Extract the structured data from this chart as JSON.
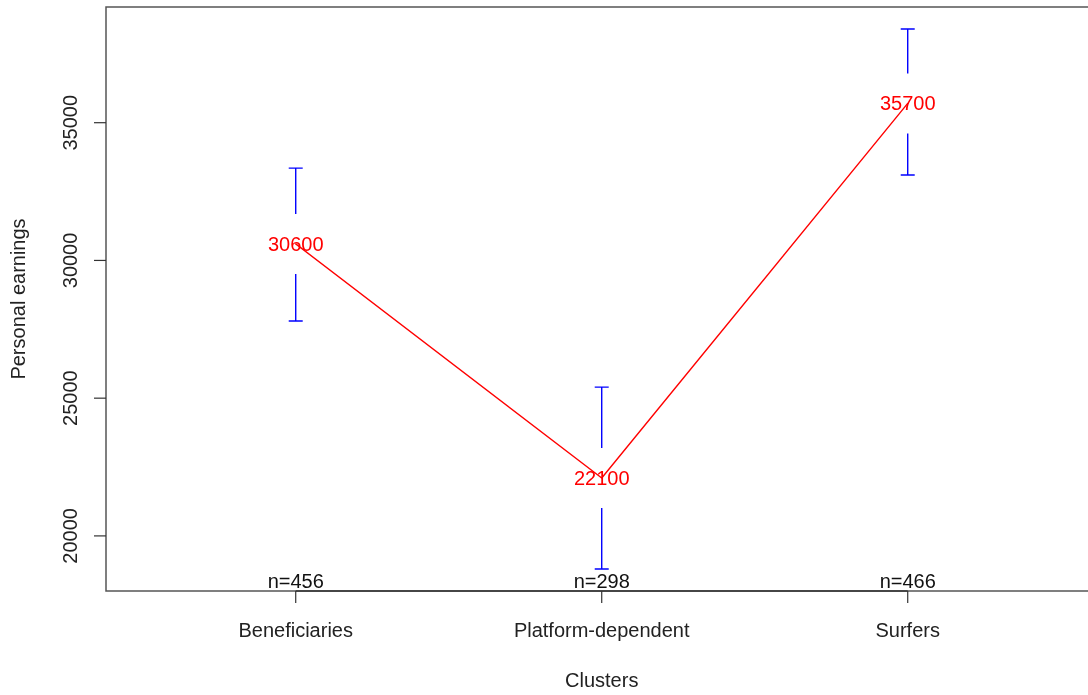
{
  "chart_data": {
    "type": "line",
    "xlabel": "Clusters",
    "ylabel": "Personal earnings",
    "categories": [
      "Beneficiaries",
      "Platform-dependent",
      "Surfers"
    ],
    "series": [
      {
        "color": "#ff0000",
        "values": [
          30600,
          22100,
          35700
        ],
        "errors": [
          [
            27800,
            33350
          ],
          [
            18800,
            25400
          ],
          [
            33100,
            38400
          ]
        ]
      }
    ],
    "ylim": [
      18000,
      39200
    ],
    "yticks": [
      20000,
      25000,
      30000,
      35000
    ],
    "data_labels": true,
    "annotations": [
      "n=456",
      "n=298",
      "n=466"
    ]
  }
}
